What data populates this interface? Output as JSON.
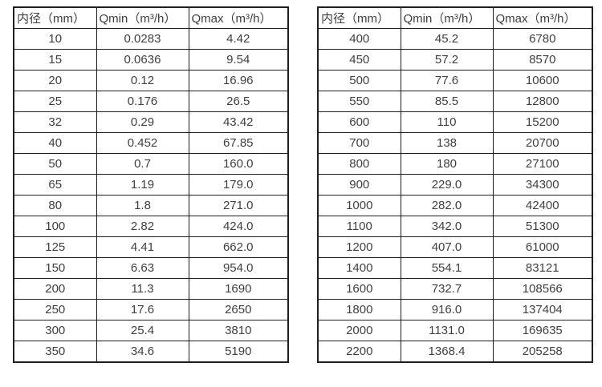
{
  "page": {
    "background_color": "#ffffff",
    "text_color": "#3f3f3f",
    "border_color": "#1f1f1f"
  },
  "tables": [
    {
      "name": "flow-spec-table-small-diameters",
      "headers": [
        "内径（mm）",
        "Qmin（m³/h）",
        "Qmax（m³/h）"
      ],
      "rows": [
        [
          "10",
          "0.0283",
          "4.42"
        ],
        [
          "15",
          "0.0636",
          "9.54"
        ],
        [
          "20",
          "0.12",
          "16.96"
        ],
        [
          "25",
          "0.176",
          "26.5"
        ],
        [
          "32",
          "0.29",
          "43.42"
        ],
        [
          "40",
          "0.452",
          "67.85"
        ],
        [
          "50",
          "0.7",
          "160.0"
        ],
        [
          "65",
          "1.19",
          "179.0"
        ],
        [
          "80",
          "1.8",
          "271.0"
        ],
        [
          "100",
          "2.82",
          "424.0"
        ],
        [
          "125",
          "4.41",
          "662.0"
        ],
        [
          "150",
          "6.63",
          "954.0"
        ],
        [
          "200",
          "11.3",
          "1690"
        ],
        [
          "250",
          "17.6",
          "2650"
        ],
        [
          "300",
          "25.4",
          "3810"
        ],
        [
          "350",
          "34.6",
          "5190"
        ]
      ]
    },
    {
      "name": "flow-spec-table-large-diameters",
      "headers": [
        "内径（mm）",
        "Qmin（m³/h）",
        "Qmax（m³/h）"
      ],
      "rows": [
        [
          "400",
          "45.2",
          "6780"
        ],
        [
          "450",
          "57.2",
          "8570"
        ],
        [
          "500",
          "77.6",
          "10600"
        ],
        [
          "550",
          "85.5",
          "12800"
        ],
        [
          "600",
          "110",
          "15200"
        ],
        [
          "700",
          "138",
          "20700"
        ],
        [
          "800",
          "180",
          "27100"
        ],
        [
          "900",
          "229.0",
          "34300"
        ],
        [
          "1000",
          "282.0",
          "42400"
        ],
        [
          "1100",
          "342.0",
          "51300"
        ],
        [
          "1200",
          "407.0",
          "61000"
        ],
        [
          "1400",
          "554.1",
          "83121"
        ],
        [
          "1600",
          "732.7",
          "108566"
        ],
        [
          "1800",
          "916.0",
          "137404"
        ],
        [
          "2000",
          "1131.0",
          "169635"
        ],
        [
          "2200",
          "1368.4",
          "205258"
        ]
      ]
    }
  ]
}
